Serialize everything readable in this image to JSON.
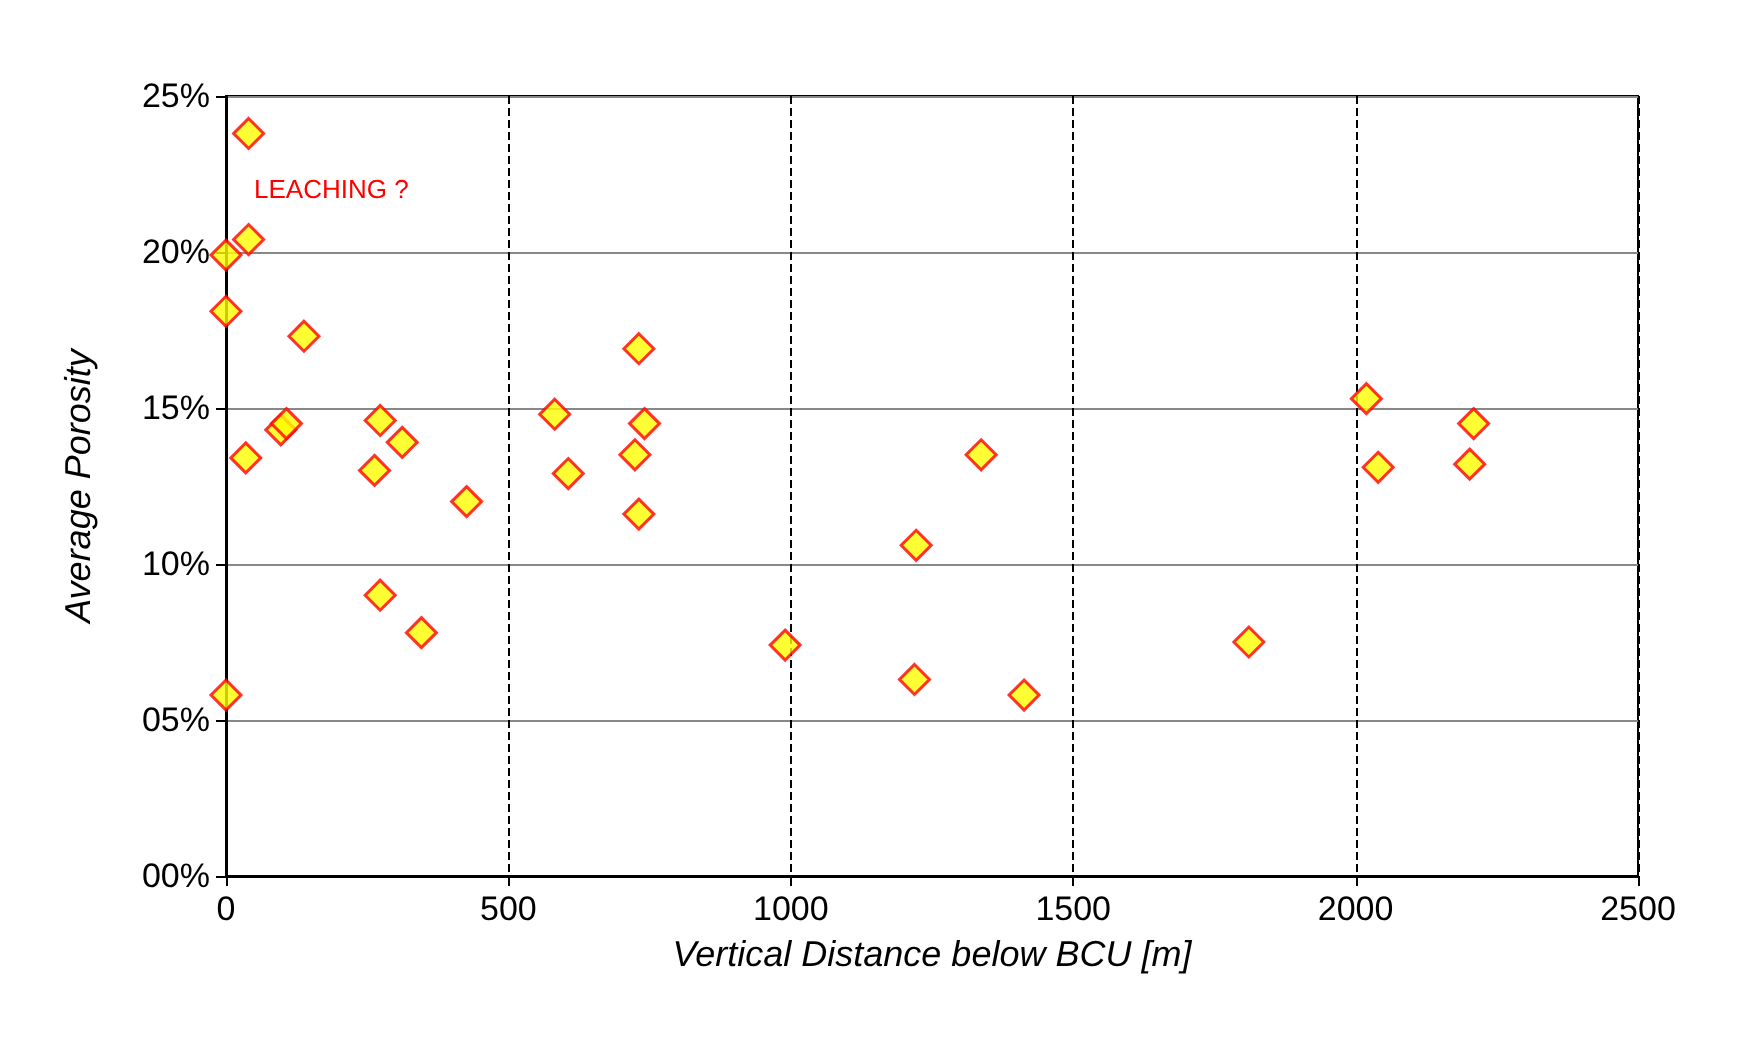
{
  "chart_data": {
    "type": "scatter",
    "xlabel": "Vertical Distance below BCU [m]",
    "ylabel": "Average Porosity",
    "x": [
      0,
      0,
      0,
      40,
      40,
      35,
      97,
      107,
      138,
      263,
      273,
      273,
      312,
      346,
      426,
      582,
      606,
      731,
      724,
      741,
      731,
      990,
      1222,
      1219,
      1337,
      1413,
      1811,
      2019,
      2040,
      2209,
      2202
    ],
    "series": [
      {
        "color": "#ffff00",
        "values": [
          5.8,
          19.9,
          18.1,
          23.8,
          20.4,
          13.4,
          14.3,
          14.5,
          17.3,
          13.0,
          14.6,
          9.0,
          13.9,
          7.8,
          12.0,
          14.8,
          12.9,
          16.9,
          13.5,
          14.5,
          11.6,
          7.4,
          10.6,
          6.3,
          13.5,
          5.8,
          7.5,
          15.3,
          13.1,
          14.5,
          13.2
        ]
      }
    ],
    "xlim": [
      0,
      2500
    ],
    "xticks": [
      0,
      500,
      1000,
      1500,
      2000,
      2500
    ],
    "ylim": [
      0,
      25
    ],
    "yticks": [
      {
        "value": 0,
        "label": "00%"
      },
      {
        "value": 5,
        "label": "05%"
      },
      {
        "value": 10,
        "label": "10%"
      },
      {
        "value": 15,
        "label": "15%"
      },
      {
        "value": 20,
        "label": "20%"
      },
      {
        "value": 25,
        "label": "25%"
      }
    ],
    "grid": true,
    "marker": "diamond",
    "annotations": [
      "LEACHING ?"
    ]
  }
}
